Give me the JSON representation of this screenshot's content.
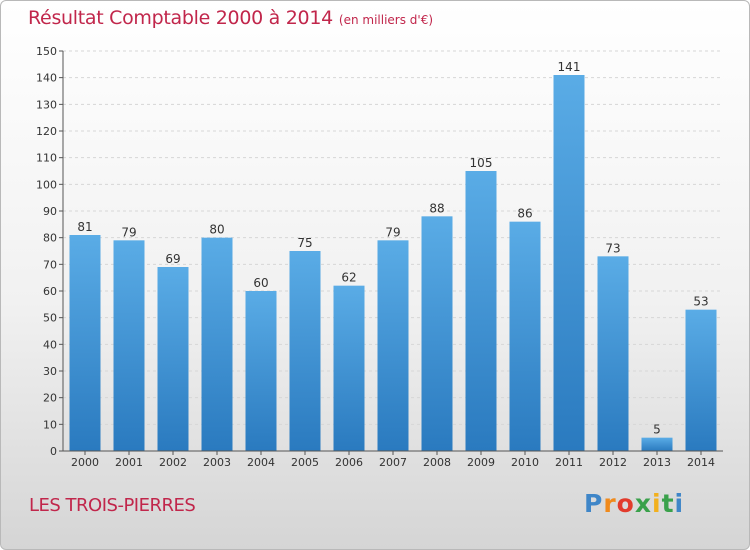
{
  "header": {
    "title": "Résultat Comptable 2000 à 2014",
    "subtitle": "(en milliers d'€)"
  },
  "footer": {
    "location": "LES TROIS-PIERRES",
    "logo_text": "Proxiti"
  },
  "colors": {
    "bar_top": "#5aace6",
    "bar_bottom": "#2a7abf",
    "title": "#c1264b",
    "grid": "#d6d6d6",
    "axis": "#555555"
  },
  "chart_data": {
    "type": "bar",
    "title": "Résultat Comptable 2000 à 2014",
    "subtitle": "(en milliers d'€)",
    "xlabel": "",
    "ylabel": "",
    "categories": [
      "2000",
      "2001",
      "2002",
      "2003",
      "2004",
      "2005",
      "2006",
      "2007",
      "2008",
      "2009",
      "2010",
      "2011",
      "2012",
      "2013",
      "2014"
    ],
    "values": [
      81,
      79,
      69,
      80,
      60,
      75,
      62,
      79,
      88,
      105,
      86,
      141,
      73,
      5,
      53
    ],
    "ylim": [
      0,
      150
    ],
    "yticks": [
      0,
      10,
      20,
      30,
      40,
      50,
      60,
      70,
      80,
      90,
      100,
      110,
      120,
      130,
      140,
      150
    ],
    "grid": true,
    "data_labels": true
  }
}
